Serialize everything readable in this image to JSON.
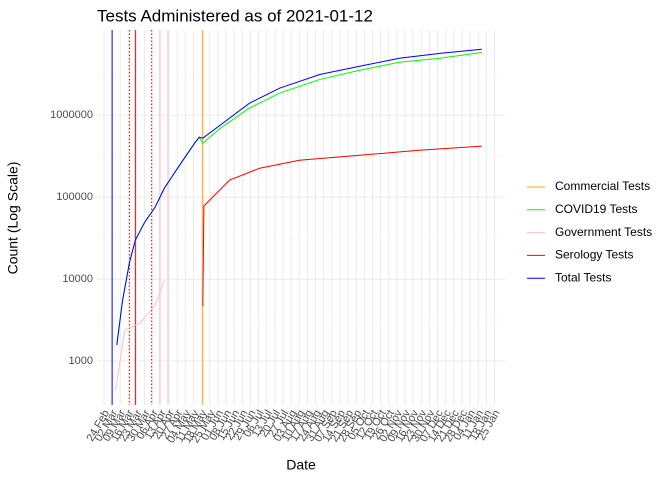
{
  "chart_data": {
    "type": "line",
    "title": "Tests Administered as of 2021-01-12",
    "x_label": "Date",
    "y_label": "Count (Log Scale)",
    "log_y": true,
    "grid": true,
    "legend": "right",
    "xlim": [
      "18 Feb",
      "03 Feb"
    ],
    "ylim": [
      290,
      11000000
    ],
    "yticks": [
      1000,
      10000,
      100000,
      1000000
    ],
    "xticks": [
      "24 Feb",
      "02 Mar",
      "09 Mar",
      "16 Mar",
      "23 Mar",
      "30 Mar",
      "06 Apr",
      "13 Apr",
      "20 Apr",
      "27 Apr",
      "04 May",
      "11 May",
      "18 May",
      "25 May",
      "01 Jun",
      "08 Jun",
      "15 Jun",
      "22 Jun",
      "29 Jun",
      "06 Jul",
      "13 Jul",
      "20 Jul",
      "27 Jul",
      "03 Aug",
      "10 Aug",
      "17 Aug",
      "24 Aug",
      "31 Aug",
      "07 Sep",
      "14 Sep",
      "21 Sep",
      "28 Sep",
      "05 Oct",
      "12 Oct",
      "19 Oct",
      "26 Oct",
      "02 Nov",
      "09 Nov",
      "16 Nov",
      "23 Nov",
      "30 Nov",
      "07 Dec",
      "14 Dec",
      "21 Dec",
      "28 Dec",
      "04 Jan",
      "11 Jan",
      "18 Jan",
      "25 Jan"
    ],
    "reference_lines": [
      {
        "x": "02 Mar",
        "color": "#0000ff",
        "dotted": false
      },
      {
        "x": "17 Mar",
        "color": "#ff0000",
        "dotted": true
      },
      {
        "x": "22 Mar",
        "color": "#ff0000",
        "dotted": false
      },
      {
        "x": "05 Apr",
        "color": "#ff0000",
        "dotted": true
      },
      {
        "x": "12 Apr",
        "color": "#ffc0cb",
        "dotted": false
      },
      {
        "x": "19 Apr",
        "color": "#ffc0cb",
        "dotted": false
      },
      {
        "x": "19 May",
        "color": "#ffa500",
        "dotted": false
      }
    ],
    "series": [
      {
        "name": "Commercial Tests",
        "color": "#ffa500",
        "x": [],
        "values": []
      },
      {
        "name": "COVID19 Tests",
        "color": "#00ff00",
        "x": [
          "06 Mar",
          "11 Mar",
          "17 Mar",
          "22 Mar",
          "30 Mar",
          "08 Apr",
          "16 Apr",
          "29 Apr",
          "12 May",
          "16 May",
          "19 May",
          "03 Jun",
          "28 Jun",
          "24 Jul",
          "28 Aug",
          "01 Oct",
          "04 Nov",
          "09 Dec",
          "14 Jan"
        ],
        "values": [
          1566,
          5540,
          16000,
          30000,
          49500,
          75700,
          129000,
          245000,
          456000,
          540000,
          456000,
          694000,
          1220000,
          1860000,
          2750000,
          3540000,
          4430000,
          4960000,
          5850000
        ]
      },
      {
        "name": "Government Tests",
        "color": "#ffc0cb",
        "x": [
          "05 Mar",
          "13 Mar",
          "26 Mar",
          "08 Apr",
          "16 Apr"
        ],
        "values": [
          443,
          2390,
          2900,
          4800,
          9700
        ]
      },
      {
        "name": "Serology Tests",
        "color": "#ff0000",
        "x": [
          "19 May",
          "20 May",
          "11 Jun",
          "07 Jul",
          "10 Aug",
          "01 Oct",
          "21 Nov",
          "14 Jan"
        ],
        "values": [
          4700,
          78000,
          161000,
          226000,
          282000,
          325000,
          375000,
          420000
        ]
      },
      {
        "name": "Total Tests",
        "color": "#0000ff",
        "x": [
          "06 Mar",
          "11 Mar",
          "17 Mar",
          "22 Mar",
          "30 Mar",
          "08 Apr",
          "16 Apr",
          "29 Apr",
          "12 May",
          "16 May",
          "19 May",
          "28 Jun",
          "24 Jul",
          "28 Aug",
          "01 Oct",
          "04 Nov",
          "09 Dec",
          "14 Jan"
        ],
        "values": [
          1566,
          5540,
          16000,
          30000,
          49500,
          75700,
          129000,
          245000,
          456000,
          540000,
          525000,
          1400000,
          2140000,
          3160000,
          3960000,
          4960000,
          5700000,
          6400000
        ]
      }
    ]
  }
}
